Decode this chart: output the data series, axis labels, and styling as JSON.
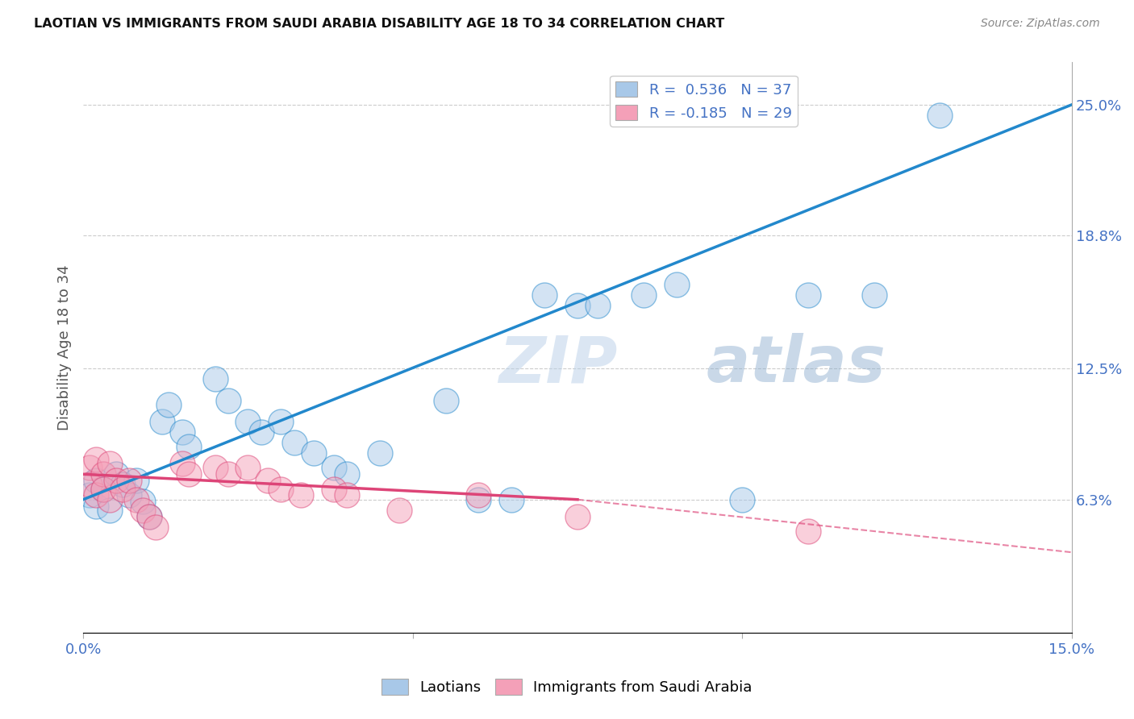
{
  "title": "LAOTIAN VS IMMIGRANTS FROM SAUDI ARABIA DISABILITY AGE 18 TO 34 CORRELATION CHART",
  "source": "Source: ZipAtlas.com",
  "ylabel": "Disability Age 18 to 34",
  "xlim": [
    0.0,
    0.15
  ],
  "ylim": [
    0.0,
    0.27
  ],
  "ytick_labels_right": [
    "6.3%",
    "12.5%",
    "18.8%",
    "25.0%"
  ],
  "ytick_values_right": [
    0.063,
    0.125,
    0.188,
    0.25
  ],
  "R_blue": 0.536,
  "N_blue": 37,
  "R_pink": -0.185,
  "N_pink": 29,
  "color_blue": "#a8c8e8",
  "color_pink": "#f4a0b8",
  "line_blue": "#2288cc",
  "line_pink": "#dd4477",
  "blue_points": [
    [
      0.001,
      0.065
    ],
    [
      0.002,
      0.06
    ],
    [
      0.002,
      0.072
    ],
    [
      0.003,
      0.068
    ],
    [
      0.004,
      0.058
    ],
    [
      0.005,
      0.075
    ],
    [
      0.006,
      0.07
    ],
    [
      0.007,
      0.065
    ],
    [
      0.008,
      0.072
    ],
    [
      0.009,
      0.062
    ],
    [
      0.01,
      0.055
    ],
    [
      0.012,
      0.1
    ],
    [
      0.013,
      0.108
    ],
    [
      0.015,
      0.095
    ],
    [
      0.016,
      0.088
    ],
    [
      0.02,
      0.12
    ],
    [
      0.022,
      0.11
    ],
    [
      0.025,
      0.1
    ],
    [
      0.027,
      0.095
    ],
    [
      0.03,
      0.1
    ],
    [
      0.032,
      0.09
    ],
    [
      0.035,
      0.085
    ],
    [
      0.038,
      0.078
    ],
    [
      0.04,
      0.075
    ],
    [
      0.045,
      0.085
    ],
    [
      0.055,
      0.11
    ],
    [
      0.06,
      0.063
    ],
    [
      0.065,
      0.063
    ],
    [
      0.07,
      0.16
    ],
    [
      0.075,
      0.155
    ],
    [
      0.078,
      0.155
    ],
    [
      0.085,
      0.16
    ],
    [
      0.09,
      0.165
    ],
    [
      0.1,
      0.063
    ],
    [
      0.11,
      0.16
    ],
    [
      0.12,
      0.16
    ],
    [
      0.13,
      0.245
    ]
  ],
  "pink_points": [
    [
      0.001,
      0.078
    ],
    [
      0.001,
      0.07
    ],
    [
      0.002,
      0.082
    ],
    [
      0.002,
      0.065
    ],
    [
      0.003,
      0.075
    ],
    [
      0.003,
      0.068
    ],
    [
      0.004,
      0.08
    ],
    [
      0.004,
      0.063
    ],
    [
      0.005,
      0.072
    ],
    [
      0.006,
      0.068
    ],
    [
      0.007,
      0.072
    ],
    [
      0.008,
      0.063
    ],
    [
      0.009,
      0.058
    ],
    [
      0.01,
      0.055
    ],
    [
      0.011,
      0.05
    ],
    [
      0.015,
      0.08
    ],
    [
      0.016,
      0.075
    ],
    [
      0.02,
      0.078
    ],
    [
      0.022,
      0.075
    ],
    [
      0.025,
      0.078
    ],
    [
      0.028,
      0.072
    ],
    [
      0.03,
      0.068
    ],
    [
      0.033,
      0.065
    ],
    [
      0.038,
      0.068
    ],
    [
      0.04,
      0.065
    ],
    [
      0.048,
      0.058
    ],
    [
      0.06,
      0.065
    ],
    [
      0.075,
      0.055
    ],
    [
      0.11,
      0.048
    ]
  ],
  "watermark_zip": "ZIP",
  "watermark_atlas": "atlas",
  "background_color": "#ffffff",
  "grid_color": "#cccccc"
}
